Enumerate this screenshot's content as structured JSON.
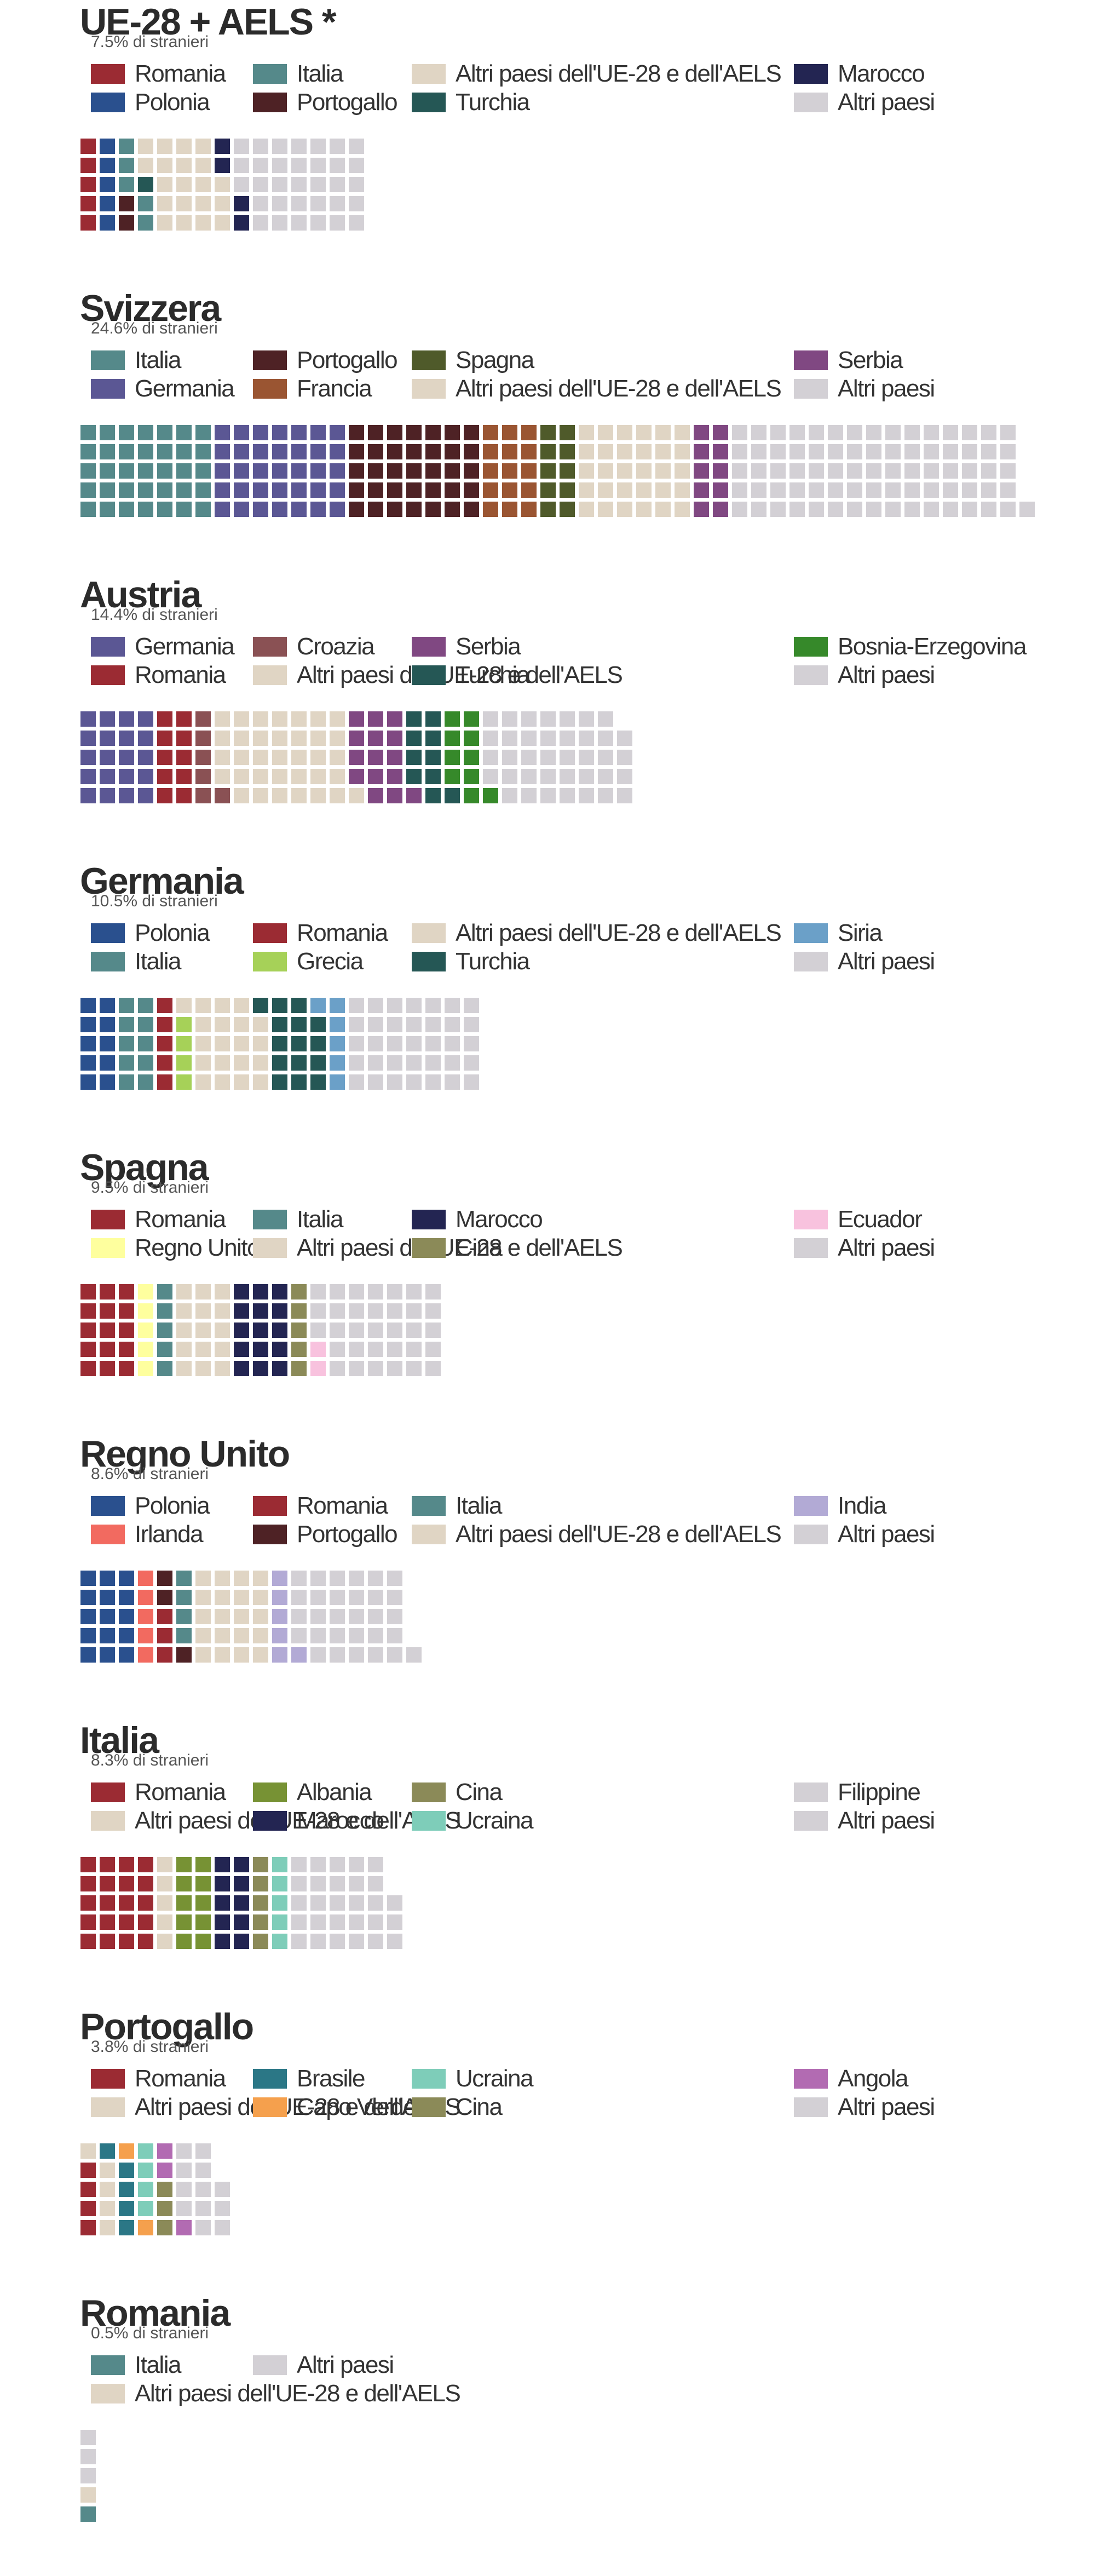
{
  "colors": {
    "Romania": "#9b2b33",
    "Italia": "#55898a",
    "Altri paesi dell'UE-28 e dell'AELS": "#e0d5c4",
    "Marocco": "#232552",
    "Polonia": "#2a508e",
    "Portogallo": "#4e2225",
    "Turchia": "#255755",
    "Altri paesi": "#d3d0d5",
    "Spagna": "#4f5a2a",
    "Serbia": "#804882",
    "Germania": "#5b5794",
    "Francia": "#9a5532",
    "Croazia": "#8a5154",
    "Bosnia-Erzegovina": "#36892a",
    "Grecia": "#a6d158",
    "Siria": "#6ba0c8",
    "Regno Unito": "#feff9e",
    "Cina": "#8b8a58",
    "Ecuador": "#f8c2de",
    "Irlanda": "#f26a60",
    "India": "#b2aad5",
    "Albania": "#779234",
    "Ucraina": "#7ecdb9",
    "Filippine": "#d3d0d5",
    "Brasile": "#2b7786",
    "Capo Verde": "#f5a04d",
    "Angola": "#b26bb2"
  },
  "chart_data": [
    {
      "type": "waffle",
      "title": "UE-28 + AELS *",
      "subtitle": "7.5% di stranieri",
      "legend_rows": [
        [
          "Romania",
          "Italia",
          "Altri paesi dell'UE-28 e dell'AELS",
          "Marocco"
        ],
        [
          "Polonia",
          "Portogallo",
          "Turchia",
          "Altri paesi"
        ]
      ],
      "categories": [
        "Romania",
        "Polonia",
        "Portogallo",
        "Italia",
        "Turchia",
        "Altri paesi dell'UE-28 e dell'AELS",
        "Marocco",
        "Altri paesi"
      ],
      "values": [
        5,
        5,
        2,
        5,
        1,
        20,
        4,
        33
      ]
    },
    {
      "type": "waffle",
      "title": "Svizzera",
      "subtitle": "24.6% di stranieri",
      "legend_rows": [
        [
          "Italia",
          "Portogallo",
          "Spagna",
          "Serbia"
        ],
        [
          "Germania",
          "Francia",
          "Altri paesi dell'UE-28 e dell'AELS",
          "Altri paesi"
        ]
      ],
      "categories": [
        "Italia",
        "Germania",
        "Portogallo",
        "Francia",
        "Spagna",
        "Altri paesi dell'UE-28 e dell'AELS",
        "Serbia",
        "Altri paesi"
      ],
      "values": [
        35,
        35,
        35,
        15,
        10,
        30,
        10,
        76
      ]
    },
    {
      "type": "waffle",
      "title": "Austria",
      "subtitle": "14.4% di stranieri",
      "legend_rows": [
        [
          "Germania",
          "Croazia",
          "Serbia",
          "Bosnia-Erzegovina"
        ],
        [
          "Romania",
          "Altri paesi dell'UE-28 e dell'AELS",
          "Turchia",
          "Altri paesi"
        ]
      ],
      "categories": [
        "Germania",
        "Romania",
        "Croazia",
        "Altri paesi dell'UE-28 e dell'AELS",
        "Serbia",
        "Turchia",
        "Bosnia-Erzegovina",
        "Altri paesi"
      ],
      "values": [
        20,
        10,
        6,
        35,
        15,
        10,
        10,
        38
      ]
    },
    {
      "type": "waffle",
      "title": "Germania",
      "subtitle": "10.5% di stranieri",
      "legend_rows": [
        [
          "Polonia",
          "Romania",
          "Altri paesi dell'UE-28 e dell'AELS",
          "Siria"
        ],
        [
          "Italia",
          "Grecia",
          "Turchia",
          "Altri paesi"
        ]
      ],
      "categories": [
        "Polonia",
        "Italia",
        "Romania",
        "Grecia",
        "Altri paesi dell'UE-28 e dell'AELS",
        "Turchia",
        "Siria",
        "Altri paesi"
      ],
      "values": [
        10,
        10,
        5,
        4,
        20,
        15,
        6,
        35
      ]
    },
    {
      "type": "waffle",
      "title": "Spagna",
      "subtitle": "9.5% di stranieri",
      "legend_rows": [
        [
          "Romania",
          "Italia",
          "Marocco",
          "Ecuador"
        ],
        [
          "Regno Unito",
          "Altri paesi dell'UE-28 e dell'AELS",
          "Cina",
          "Altri paesi"
        ]
      ],
      "categories": [
        "Romania",
        "Regno Unito",
        "Italia",
        "Altri paesi dell'UE-28 e dell'AELS",
        "Marocco",
        "Cina",
        "Ecuador",
        "Altri paesi"
      ],
      "values": [
        15,
        5,
        5,
        15,
        15,
        5,
        2,
        33
      ]
    },
    {
      "type": "waffle",
      "title": "Regno Unito",
      "subtitle": "8.6% di stranieri",
      "legend_rows": [
        [
          "Polonia",
          "Romania",
          "Italia",
          "India"
        ],
        [
          "Irlanda",
          "Portogallo",
          "Altri paesi dell'UE-28 e dell'AELS",
          "Altri paesi"
        ]
      ],
      "categories": [
        "Polonia",
        "Irlanda",
        "Romania",
        "Portogallo",
        "Italia",
        "Altri paesi dell'UE-28 e dell'AELS",
        "India",
        "Altri paesi"
      ],
      "values": [
        15,
        5,
        3,
        3,
        4,
        20,
        6,
        30
      ]
    },
    {
      "type": "waffle",
      "title": "Italia",
      "subtitle": "8.3% di stranieri",
      "legend_rows": [
        [
          "Romania",
          "Albania",
          "Cina",
          "Filippine"
        ],
        [
          "Altri paesi dell'UE-28 e dell'AELS",
          "Marocco",
          "Ucraina",
          "Altri paesi"
        ]
      ],
      "categories": [
        "Romania",
        "Altri paesi dell'UE-28 e dell'AELS",
        "Albania",
        "Marocco",
        "Cina",
        "Ucraina",
        "Filippine",
        "Altri paesi"
      ],
      "values": [
        20,
        5,
        10,
        10,
        5,
        5,
        5,
        23
      ]
    },
    {
      "type": "waffle",
      "title": "Portogallo",
      "subtitle": "3.8% di stranieri",
      "legend_rows": [
        [
          "Romania",
          "Brasile",
          "Ucraina",
          "Angola"
        ],
        [
          "Altri paesi dell'UE-28 e dell'AELS",
          "Capo Verde",
          "Cina",
          "Altri paesi"
        ]
      ],
      "categories": [
        "Romania",
        "Altri paesi dell'UE-28 e dell'AELS",
        "Brasile",
        "Capo Verde",
        "Ucraina",
        "Cina",
        "Angola",
        "Altri paesi"
      ],
      "values": [
        4,
        5,
        5,
        2,
        4,
        3,
        3,
        12
      ]
    },
    {
      "type": "waffle",
      "title": "Romania",
      "subtitle": "0.5% di stranieri",
      "legend_rows": [
        [
          "Italia",
          "Altri paesi"
        ],
        [
          "Altri paesi dell'UE-28 e dell'AELS"
        ]
      ],
      "categories": [
        "Italia",
        "Altri paesi dell'UE-28 e dell'AELS",
        "Altri paesi"
      ],
      "values": [
        1,
        1,
        3
      ]
    }
  ]
}
